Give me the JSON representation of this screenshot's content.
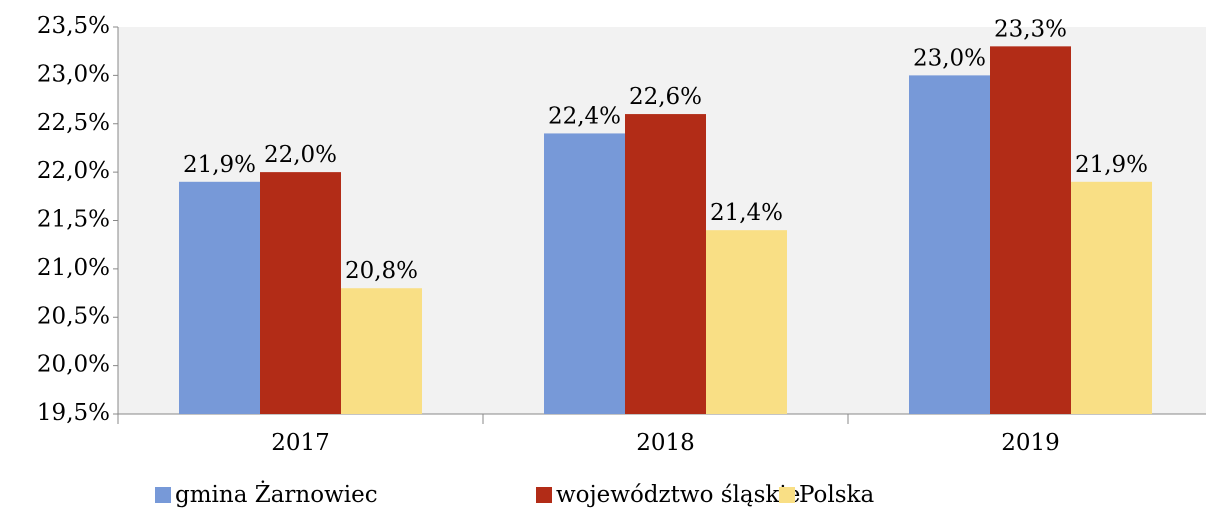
{
  "chart_data": {
    "type": "bar",
    "categories": [
      "2017",
      "2018",
      "2019"
    ],
    "series": [
      {
        "name": "gmina Żarnowiec",
        "color": "#7799d8",
        "values": [
          21.9,
          22.4,
          23.0
        ],
        "value_labels": [
          "21,9%",
          "22,4%",
          "23,0%"
        ]
      },
      {
        "name": "województwo śląskie",
        "color": "#b22c17",
        "values": [
          22.0,
          22.6,
          23.3
        ],
        "value_labels": [
          "22,0%",
          "22,6%",
          "23,3%"
        ]
      },
      {
        "name": "Polska",
        "color": "#f9df85",
        "values": [
          20.8,
          21.4,
          21.9
        ],
        "value_labels": [
          "20,8%",
          "21,4%",
          "21,9%"
        ]
      }
    ],
    "ylim": [
      19.5,
      23.5
    ],
    "yticks": [
      {
        "value": 19.5,
        "label": "19,5%"
      },
      {
        "value": 20.0,
        "label": "20,0%"
      },
      {
        "value": 20.5,
        "label": "20,5%"
      },
      {
        "value": 21.0,
        "label": "21,0%"
      },
      {
        "value": 21.5,
        "label": "21,5%"
      },
      {
        "value": 22.0,
        "label": "22,0%"
      },
      {
        "value": 22.5,
        "label": "22,5%"
      },
      {
        "value": 23.0,
        "label": "23,0%"
      },
      {
        "value": 23.5,
        "label": "23,5%"
      }
    ],
    "grid": false,
    "legend": "bottom"
  }
}
